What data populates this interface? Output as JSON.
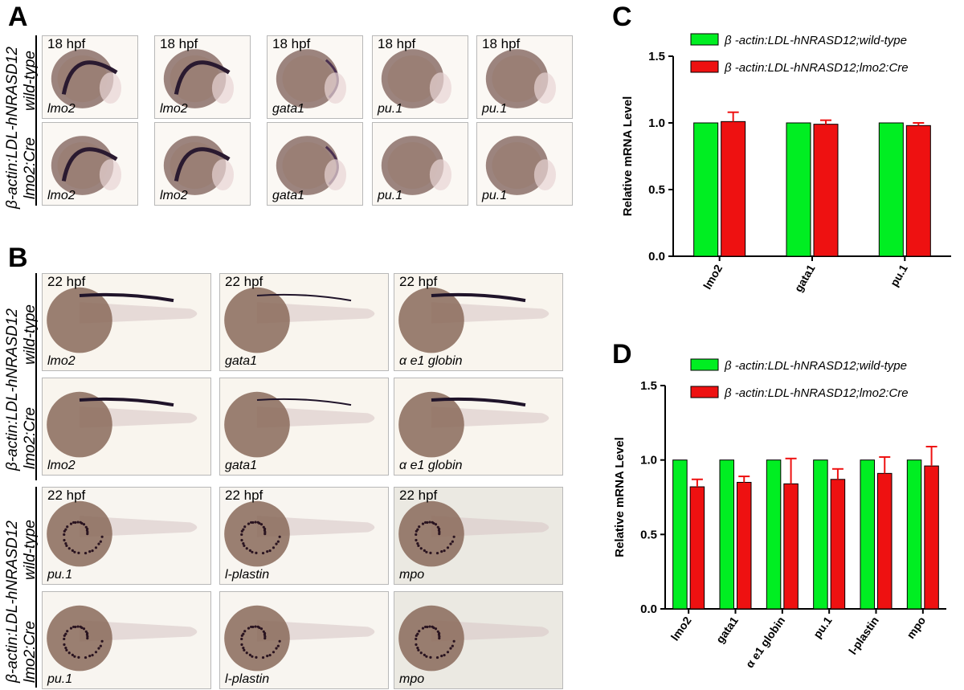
{
  "panels": {
    "a": "A",
    "b": "B",
    "c": "C",
    "d": "D"
  },
  "figure_a": {
    "row_group_label": "β-actin:LDL-hNRASD12",
    "rows": [
      {
        "label": "wild-type",
        "cells": [
          {
            "hpf": "18 hpf",
            "gene": "lmo2"
          },
          {
            "hpf": "18 hpf",
            "gene": "lmo2"
          },
          {
            "hpf": "18 hpf",
            "gene": "gata1"
          },
          {
            "hpf": "18 hpf",
            "gene": "pu.1"
          },
          {
            "hpf": "18 hpf",
            "gene": "pu.1"
          }
        ]
      },
      {
        "label": "lmo2:Cre",
        "cells": [
          {
            "hpf": "",
            "gene": "lmo2"
          },
          {
            "hpf": "",
            "gene": "lmo2"
          },
          {
            "hpf": "",
            "gene": "gata1"
          },
          {
            "hpf": "",
            "gene": "pu.1"
          },
          {
            "hpf": "",
            "gene": "pu.1"
          }
        ]
      }
    ]
  },
  "figure_b": {
    "row_group_label": "β-actin:LDL-hNRASD12",
    "top_rows": [
      {
        "label": "wild-type",
        "cells": [
          {
            "hpf": "22 hpf",
            "gene": "lmo2"
          },
          {
            "hpf": "22 hpf",
            "gene": "gata1"
          },
          {
            "hpf": "22 hpf",
            "gene": "α e1 globin"
          }
        ]
      },
      {
        "label": "lmo2:Cre",
        "cells": [
          {
            "hpf": "",
            "gene": "lmo2"
          },
          {
            "hpf": "",
            "gene": "gata1"
          },
          {
            "hpf": "",
            "gene": "α e1 globin"
          }
        ]
      }
    ],
    "bottom_rows": [
      {
        "label": "wild-type",
        "cells": [
          {
            "hpf": "22 hpf",
            "gene": "pu.1"
          },
          {
            "hpf": "22 hpf",
            "gene": "l-plastin"
          },
          {
            "hpf": "22 hpf",
            "gene": "mpo"
          }
        ]
      },
      {
        "label": "lmo2:Cre",
        "cells": [
          {
            "hpf": "",
            "gene": "pu.1"
          },
          {
            "hpf": "",
            "gene": "l-plastin"
          },
          {
            "hpf": "",
            "gene": "mpo"
          }
        ]
      }
    ]
  },
  "colors": {
    "wild_type": "#00ee22",
    "cre": "#ee1111"
  },
  "chart_data": [
    {
      "type": "bar",
      "panel": "C",
      "categories": [
        "lmo2",
        "gata1",
        "pu.1"
      ],
      "series": [
        {
          "name": "β -actin:LDL-hNRASD12;wild-type",
          "values": [
            1.0,
            1.0,
            1.0
          ],
          "errors": [
            0,
            0,
            0
          ]
        },
        {
          "name": "β -actin:LDL-hNRASD12;lmo2:Cre",
          "values": [
            1.01,
            0.99,
            0.98
          ],
          "errors": [
            0.07,
            0.03,
            0.02
          ]
        }
      ],
      "ylabel": "Relative mRNA Level",
      "ylim": [
        0,
        1.5
      ],
      "yticks": [
        "0.0",
        "0.5",
        "1.0",
        "1.5"
      ],
      "legend": "top"
    },
    {
      "type": "bar",
      "panel": "D",
      "categories": [
        "lmo2",
        "gata1",
        "α e1 globin",
        "pu.1",
        "l-plastin",
        "mpo"
      ],
      "series": [
        {
          "name": "β -actin:LDL-hNRASD12;wild-type",
          "values": [
            1.0,
            1.0,
            1.0,
            1.0,
            1.0,
            1.0
          ],
          "errors": [
            0,
            0,
            0,
            0,
            0,
            0
          ]
        },
        {
          "name": "β -actin:LDL-hNRASD12;lmo2:Cre",
          "values": [
            0.82,
            0.85,
            0.84,
            0.87,
            0.91,
            0.96
          ],
          "errors": [
            0.05,
            0.04,
            0.17,
            0.07,
            0.11,
            0.13
          ]
        }
      ],
      "ylabel": "Relative mRNA Level",
      "ylim": [
        0,
        1.5
      ],
      "yticks": [
        "0.0",
        "0.5",
        "1.0",
        "1.5"
      ],
      "legend": "top"
    }
  ]
}
